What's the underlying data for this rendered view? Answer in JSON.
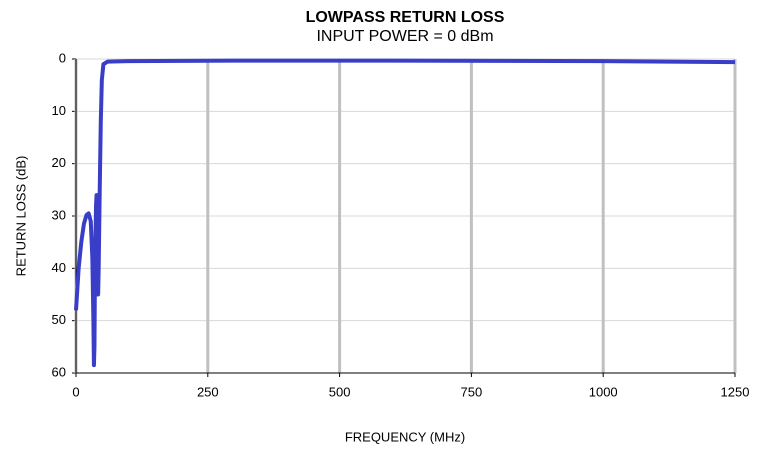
{
  "chart_data": {
    "type": "line",
    "title": "LOWPASS RETURN LOSS",
    "subtitle": "INPUT POWER = 0 dBm",
    "x_label": "FREQUENCY (MHz)",
    "y_label": "RETURN LOSS (dB)",
    "x": [
      0,
      5,
      10,
      15,
      20,
      24,
      28,
      31,
      33,
      34,
      35,
      36,
      38,
      39,
      40,
      41,
      42,
      43,
      45,
      47,
      49,
      52,
      60,
      100,
      300,
      600,
      1000,
      1250
    ],
    "series": [
      {
        "name": "RETURN LOSS",
        "color": "#3a3dc8",
        "values": [
          48,
          40,
          35,
          31.5,
          29.8,
          29.5,
          31,
          38,
          50,
          58.5,
          55,
          40,
          28,
          26,
          32,
          42,
          45,
          40,
          25,
          12,
          4,
          1,
          0.5,
          0.4,
          0.3,
          0.3,
          0.4,
          0.6
        ]
      }
    ],
    "xlim": [
      0,
      1250
    ],
    "xticks": [
      0,
      250,
      500,
      750,
      1000,
      1250
    ],
    "ylim": [
      60,
      0
    ],
    "yticks": [
      0,
      10,
      20,
      30,
      40,
      50,
      60
    ],
    "grid": true
  }
}
